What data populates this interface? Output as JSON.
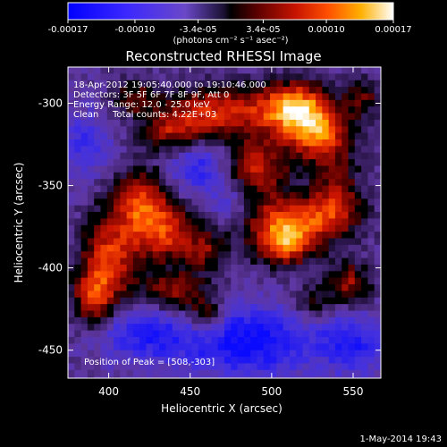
{
  "chart_data": {
    "type": "heatmap",
    "title": "Reconstructed RHESSI Image",
    "xlabel": "Heliocentric X (arcsec)",
    "ylabel": "Heliocentric Y (arcsec)",
    "xlim": [
      375,
      567
    ],
    "ylim": [
      -467,
      -278
    ],
    "x_ticks": [
      400,
      450,
      500,
      550
    ],
    "y_ticks": [
      -300,
      -350,
      -400,
      -450
    ],
    "colorbar": {
      "range": [
        -0.00017,
        0.00017
      ],
      "tick_values": [
        -0.00017,
        -0.0001,
        -3.4e-05,
        3.4e-05,
        0.0001,
        0.00017
      ],
      "tick_labels": [
        "-0.00017",
        "-0.00010",
        "-3.4e-05",
        "3.4e-05",
        "0.00010",
        "0.00017"
      ],
      "unit_label": "(photons cm⁻² s⁻¹ asec⁻²)"
    },
    "annotations": [
      "18-Apr-2012 19:05:40.000 to 19:10:46.000",
      "Detectors: 3F 5F 6F 7F 8F 9F, Att 0",
      "Energy Range: 12.0 - 25.0 keV",
      "Clean",
      "Total counts: 4.22E+03"
    ],
    "peak_label": "Position of Peak = [508,-303]",
    "peak": [
      508,
      -303
    ],
    "footer_date": "1-May-2014 19:43",
    "sources": [
      {
        "x": 515,
        "y": -303,
        "amp": 1.0,
        "sx": 14,
        "sy": 11
      },
      {
        "x": 530,
        "y": -320,
        "amp": 0.85,
        "sx": 14,
        "sy": 12
      },
      {
        "x": 470,
        "y": -305,
        "amp": 0.75,
        "sx": 26,
        "sy": 11
      },
      {
        "x": 440,
        "y": -318,
        "amp": 0.55,
        "sx": 14,
        "sy": 9
      },
      {
        "x": 490,
        "y": -340,
        "amp": 0.7,
        "sx": 14,
        "sy": 13
      },
      {
        "x": 515,
        "y": -370,
        "amp": 0.8,
        "sx": 24,
        "sy": 10
      },
      {
        "x": 540,
        "y": -355,
        "amp": 0.55,
        "sx": 10,
        "sy": 14
      },
      {
        "x": 508,
        "y": -386,
        "amp": 0.9,
        "sx": 13,
        "sy": 9
      },
      {
        "x": 420,
        "y": -360,
        "amp": 0.8,
        "sx": 13,
        "sy": 14
      },
      {
        "x": 435,
        "y": -380,
        "amp": 0.7,
        "sx": 14,
        "sy": 12
      },
      {
        "x": 400,
        "y": -395,
        "amp": 0.8,
        "sx": 12,
        "sy": 18
      },
      {
        "x": 390,
        "y": -420,
        "amp": 0.65,
        "sx": 9,
        "sy": 12
      },
      {
        "x": 440,
        "y": -415,
        "amp": 0.6,
        "sx": 15,
        "sy": 9
      },
      {
        "x": 460,
        "y": -430,
        "amp": 0.55,
        "sx": 8,
        "sy": 8
      },
      {
        "x": 460,
        "y": -390,
        "amp": 0.45,
        "sx": 9,
        "sy": 9
      },
      {
        "x": 548,
        "y": -410,
        "amp": 0.6,
        "sx": 10,
        "sy": 10
      },
      {
        "x": 525,
        "y": -422,
        "amp": 0.4,
        "sx": 9,
        "sy": 8
      },
      {
        "x": 415,
        "y": -296,
        "amp": 0.45,
        "sx": 9,
        "sy": 7
      },
      {
        "x": 556,
        "y": -296,
        "amp": 0.45,
        "sx": 8,
        "sy": 8
      },
      {
        "x": 455,
        "y": -338,
        "amp": -0.5,
        "sx": 14,
        "sy": 12
      },
      {
        "x": 485,
        "y": -445,
        "amp": -0.7,
        "sx": 30,
        "sy": 15
      },
      {
        "x": 420,
        "y": -440,
        "amp": -0.5,
        "sx": 20,
        "sy": 12
      },
      {
        "x": 550,
        "y": -445,
        "amp": -0.5,
        "sx": 14,
        "sy": 14
      },
      {
        "x": 385,
        "y": -325,
        "amp": -0.4,
        "sx": 12,
        "sy": 14
      },
      {
        "x": 475,
        "y": -360,
        "amp": -0.35,
        "sx": 10,
        "sy": 10
      }
    ]
  }
}
